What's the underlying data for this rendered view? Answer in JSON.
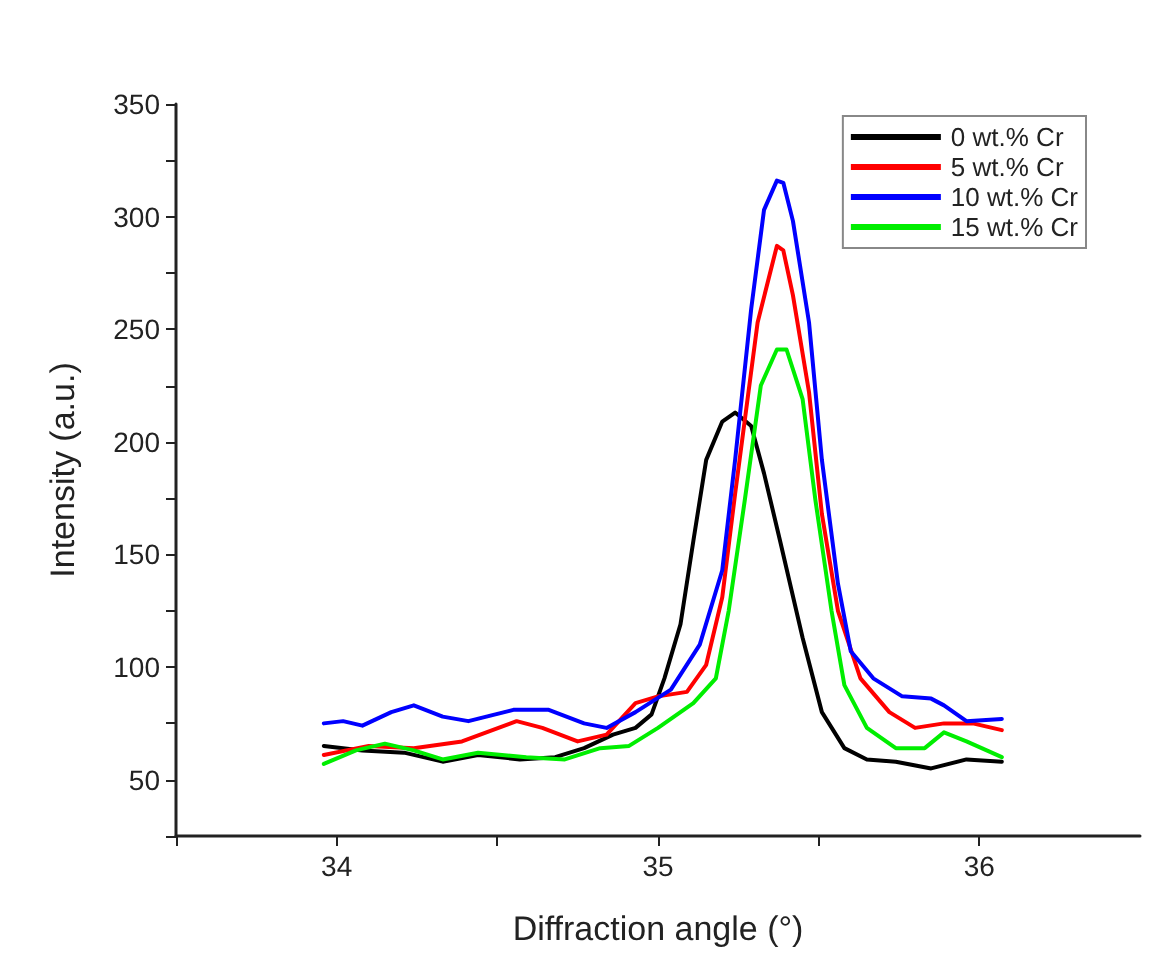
{
  "chart_data": {
    "type": "line",
    "xlabel": "Diffraction angle (°)",
    "ylabel": "Intensity (a.u.)",
    "xlim": [
      33.5,
      36.5
    ],
    "ylim": [
      25,
      350
    ],
    "xticks": [
      {
        "value": 33.5,
        "label": null
      },
      34,
      {
        "value": 34.5,
        "label": null
      },
      35,
      {
        "value": 35.5,
        "label": null
      },
      36
    ],
    "yticks": [
      {
        "value": 25,
        "label": null
      },
      50,
      {
        "value": 75,
        "label": null
      },
      100,
      {
        "value": 125,
        "label": null
      },
      150,
      {
        "value": 175,
        "label": null
      },
      200,
      {
        "value": 225,
        "label": null
      },
      250,
      {
        "value": 275,
        "label": null
      },
      300,
      {
        "value": 325,
        "label": null
      },
      350
    ],
    "grid": false,
    "legend": "top right",
    "marker": "none",
    "line_style": "solid",
    "series": [
      {
        "name": "0 wt.% Cr",
        "color": "#000000",
        "x": [
          33.96,
          34.08,
          34.21,
          34.33,
          34.44,
          34.57,
          34.68,
          34.77,
          34.86,
          34.93,
          34.98,
          35.02,
          35.07,
          35.11,
          35.15,
          35.2,
          35.24,
          35.29,
          35.33,
          35.38,
          35.45,
          35.51,
          35.58,
          35.65,
          35.74,
          35.85,
          35.96,
          36.07
        ],
        "values": [
          65,
          63,
          62,
          58,
          61,
          59,
          60,
          64,
          70,
          73,
          79,
          95,
          119,
          156,
          192,
          209,
          213,
          207,
          186,
          156,
          113,
          80,
          64,
          59,
          58,
          55,
          59,
          58
        ]
      },
      {
        "name": "5 wt.% Cr",
        "color": "#ff0000",
        "x": [
          33.96,
          34.1,
          34.24,
          34.39,
          34.56,
          34.64,
          34.75,
          34.84,
          34.93,
          35.0,
          35.09,
          35.15,
          35.2,
          35.24,
          35.31,
          35.37,
          35.39,
          35.42,
          35.47,
          35.51,
          35.56,
          35.63,
          35.72,
          35.8,
          35.89,
          35.98,
          36.07
        ],
        "values": [
          61,
          65,
          64,
          67,
          76,
          73,
          67,
          70,
          84,
          87,
          89,
          101,
          131,
          177,
          253,
          287,
          285,
          265,
          222,
          168,
          125,
          95,
          80,
          73,
          75,
          75,
          72
        ]
      },
      {
        "name": "10 wt.% Cr",
        "color": "#0000ff",
        "x": [
          33.96,
          34.02,
          34.08,
          34.17,
          34.24,
          34.33,
          34.41,
          34.55,
          34.66,
          34.77,
          34.84,
          34.93,
          35.04,
          35.13,
          35.2,
          35.24,
          35.29,
          35.33,
          35.37,
          35.39,
          35.42,
          35.47,
          35.51,
          35.56,
          35.6,
          35.67,
          35.76,
          35.85,
          35.89,
          35.96,
          36.07
        ],
        "values": [
          75,
          76,
          74,
          80,
          83,
          78,
          76,
          81,
          81,
          75,
          73,
          80,
          90,
          110,
          143,
          192,
          259,
          303,
          316,
          315,
          298,
          253,
          192,
          137,
          107,
          95,
          87,
          86,
          83,
          76,
          77
        ]
      },
      {
        "name": "15 wt.% Cr",
        "color": "#00ee00",
        "x": [
          33.96,
          34.06,
          34.15,
          34.24,
          34.33,
          34.44,
          34.59,
          34.71,
          34.82,
          34.91,
          35.0,
          35.11,
          35.18,
          35.22,
          35.27,
          35.32,
          35.37,
          35.4,
          35.45,
          35.49,
          35.54,
          35.58,
          35.65,
          35.74,
          35.83,
          35.89,
          35.96,
          36.07
        ],
        "values": [
          57,
          63,
          66,
          63,
          59,
          62,
          60,
          59,
          64,
          65,
          73,
          84,
          95,
          125,
          174,
          225,
          241,
          241,
          219,
          174,
          125,
          92,
          73,
          64,
          64,
          71,
          67,
          60
        ]
      }
    ]
  }
}
